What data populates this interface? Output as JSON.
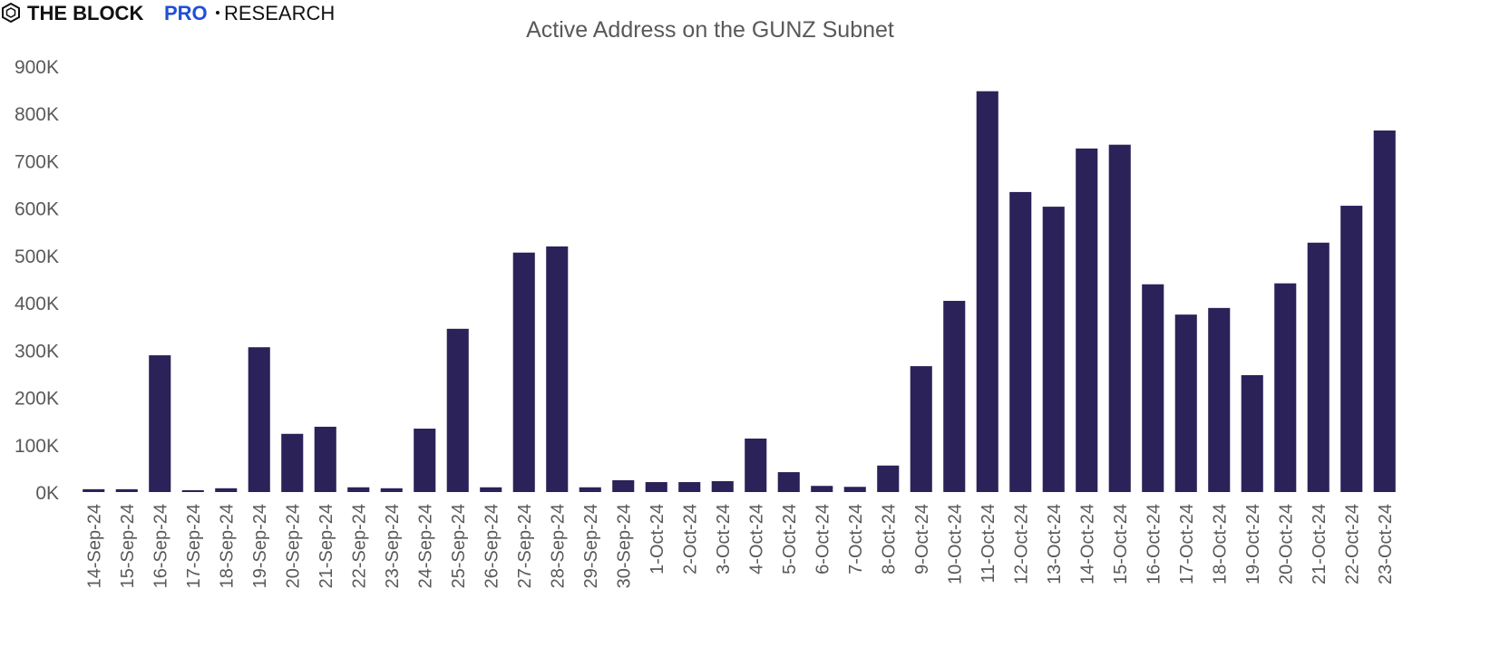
{
  "header": {
    "brand": "THE BLOCK",
    "pro": "PRO",
    "section": "RESEARCH"
  },
  "chart_data": {
    "type": "bar",
    "title": "Active Address on the GUNZ Subnet",
    "categories": [
      "14-Sep-24",
      "15-Sep-24",
      "16-Sep-24",
      "17-Sep-24",
      "18-Sep-24",
      "19-Sep-24",
      "20-Sep-24",
      "21-Sep-24",
      "22-Sep-24",
      "23-Sep-24",
      "24-Sep-24",
      "25-Sep-24",
      "26-Sep-24",
      "27-Sep-24",
      "28-Sep-24",
      "29-Sep-24",
      "30-Sep-24",
      "1-Oct-24",
      "2-Oct-24",
      "3-Oct-24",
      "4-Oct-24",
      "5-Oct-24",
      "6-Oct-24",
      "7-Oct-24",
      "8-Oct-24",
      "9-Oct-24",
      "10-Oct-24",
      "11-Oct-24",
      "12-Oct-24",
      "13-Oct-24",
      "14-Oct-24",
      "15-Oct-24",
      "16-Oct-24",
      "17-Oct-24",
      "18-Oct-24",
      "19-Oct-24",
      "20-Oct-24",
      "21-Oct-24",
      "22-Oct-24",
      "23-Oct-24"
    ],
    "values": [
      6000,
      6000,
      289000,
      4000,
      8000,
      306000,
      123000,
      138000,
      10000,
      8000,
      134000,
      345000,
      10000,
      506000,
      519000,
      10000,
      25000,
      21000,
      21000,
      23000,
      113000,
      42000,
      13000,
      11000,
      56000,
      266000,
      404000,
      847000,
      634000,
      603000,
      726000,
      734000,
      439000,
      375000,
      389000,
      247000,
      441000,
      527000,
      605000,
      764000
    ],
    "color": "#2b2259",
    "ylim": [
      0,
      900000
    ],
    "yticks": [
      {
        "value": 0,
        "label": "0K"
      },
      {
        "value": 100000,
        "label": "100K"
      },
      {
        "value": 200000,
        "label": "200K"
      },
      {
        "value": 300000,
        "label": "300K"
      },
      {
        "value": 400000,
        "label": "400K"
      },
      {
        "value": 500000,
        "label": "500K"
      },
      {
        "value": 600000,
        "label": "600K"
      },
      {
        "value": 700000,
        "label": "700K"
      },
      {
        "value": 800000,
        "label": "800K"
      },
      {
        "value": 900000,
        "label": "900K"
      }
    ],
    "grid": false
  }
}
